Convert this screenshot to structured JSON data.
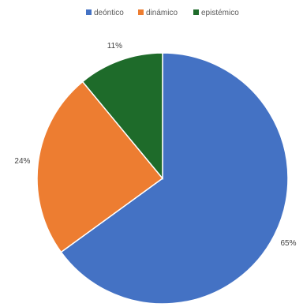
{
  "chart_data": {
    "type": "pie",
    "categories": [
      "deóntico",
      "dinámico",
      "epistémico"
    ],
    "values": [
      65,
      24,
      11
    ],
    "labels": [
      "65%",
      "24%",
      "11%"
    ],
    "colors": [
      "#4472C4",
      "#ED7D31",
      "#1E6B2A"
    ],
    "legend": {
      "position": "top",
      "entries": [
        "deóntico",
        "dinámico",
        "epistémico"
      ]
    },
    "start_angle_deg": 0,
    "direction": "clockwise"
  }
}
